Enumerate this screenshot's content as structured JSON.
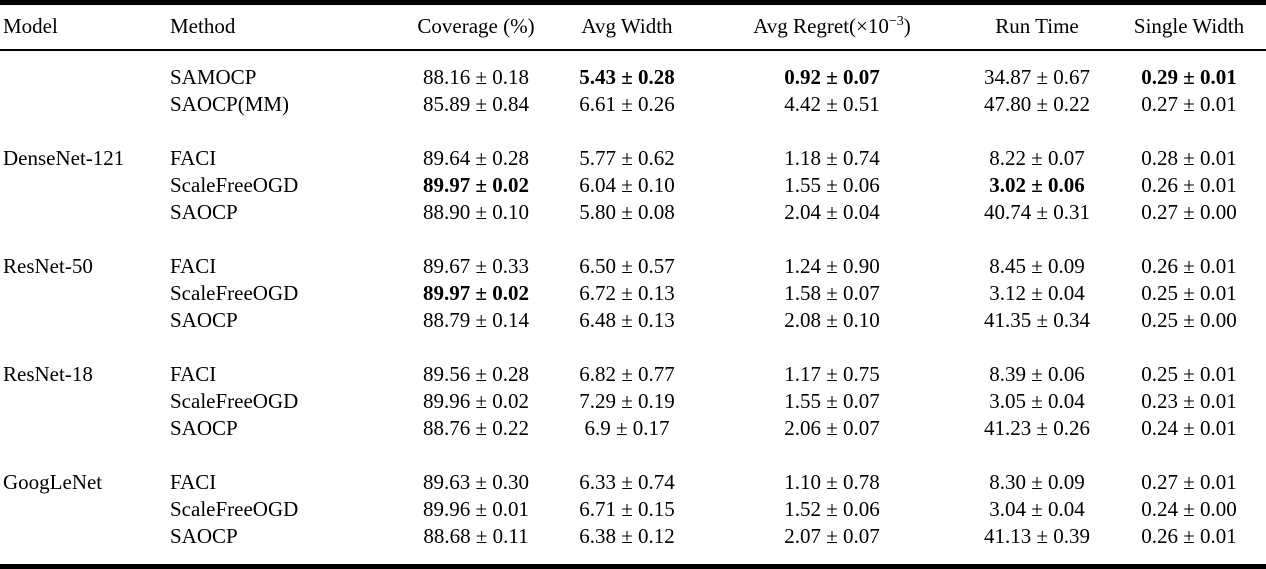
{
  "table": {
    "columns": [
      {
        "label": "Model"
      },
      {
        "label": "Method"
      },
      {
        "label": "Coverage (%)"
      },
      {
        "label": "Avg Width"
      },
      {
        "label": "Avg Regret(×10",
        "sup": "−3",
        "suffix": ")"
      },
      {
        "label": "Run Time"
      },
      {
        "label": "Single Width"
      }
    ],
    "groups": [
      {
        "model": "",
        "rows": [
          {
            "method": "SAMOCP",
            "cells": [
              {
                "v": "88.16 ± 0.18"
              },
              {
                "v": "5.43 ± 0.28",
                "b": true
              },
              {
                "v": "0.92 ± 0.07",
                "b": true
              },
              {
                "v": "34.87 ± 0.67"
              },
              {
                "v": "0.29 ± 0.01",
                "b": true
              }
            ]
          },
          {
            "method": "SAOCP(MM)",
            "cells": [
              {
                "v": "85.89 ± 0.84"
              },
              {
                "v": "6.61 ± 0.26"
              },
              {
                "v": "4.42 ± 0.51"
              },
              {
                "v": "47.80 ± 0.22"
              },
              {
                "v": "0.27 ± 0.01"
              }
            ]
          }
        ]
      },
      {
        "model": "DenseNet-121",
        "rows": [
          {
            "method": "FACI",
            "cells": [
              {
                "v": "89.64 ± 0.28"
              },
              {
                "v": "5.77 ± 0.62"
              },
              {
                "v": "1.18 ± 0.74"
              },
              {
                "v": "8.22 ± 0.07"
              },
              {
                "v": "0.28 ± 0.01"
              }
            ]
          },
          {
            "method": "ScaleFreeOGD",
            "cells": [
              {
                "v": "89.97 ± 0.02",
                "b": true
              },
              {
                "v": "6.04 ± 0.10"
              },
              {
                "v": "1.55 ± 0.06"
              },
              {
                "v": "3.02 ± 0.06",
                "b": true
              },
              {
                "v": "0.26 ± 0.01"
              }
            ]
          },
          {
            "method": "SAOCP",
            "cells": [
              {
                "v": "88.90 ± 0.10"
              },
              {
                "v": "5.80 ± 0.08"
              },
              {
                "v": "2.04 ± 0.04"
              },
              {
                "v": "40.74 ± 0.31"
              },
              {
                "v": "0.27 ± 0.00"
              }
            ]
          }
        ]
      },
      {
        "model": "ResNet-50",
        "rows": [
          {
            "method": "FACI",
            "cells": [
              {
                "v": "89.67 ± 0.33"
              },
              {
                "v": "6.50 ± 0.57"
              },
              {
                "v": "1.24 ± 0.90"
              },
              {
                "v": "8.45 ± 0.09"
              },
              {
                "v": "0.26 ± 0.01"
              }
            ]
          },
          {
            "method": "ScaleFreeOGD",
            "cells": [
              {
                "v": "89.97 ± 0.02",
                "b": true
              },
              {
                "v": "6.72 ± 0.13"
              },
              {
                "v": "1.58 ± 0.07"
              },
              {
                "v": "3.12 ± 0.04"
              },
              {
                "v": "0.25 ± 0.01"
              }
            ]
          },
          {
            "method": "SAOCP",
            "cells": [
              {
                "v": "88.79 ± 0.14"
              },
              {
                "v": "6.48 ± 0.13"
              },
              {
                "v": "2.08 ± 0.10"
              },
              {
                "v": "41.35 ± 0.34"
              },
              {
                "v": "0.25 ± 0.00"
              }
            ]
          }
        ]
      },
      {
        "model": "ResNet-18",
        "rows": [
          {
            "method": "FACI",
            "cells": [
              {
                "v": "89.56 ± 0.28"
              },
              {
                "v": "6.82 ± 0.77"
              },
              {
                "v": "1.17 ± 0.75"
              },
              {
                "v": "8.39 ± 0.06"
              },
              {
                "v": "0.25 ± 0.01"
              }
            ]
          },
          {
            "method": "ScaleFreeOGD",
            "cells": [
              {
                "v": "89.96 ± 0.02"
              },
              {
                "v": "7.29 ± 0.19"
              },
              {
                "v": "1.55 ± 0.07"
              },
              {
                "v": "3.05 ± 0.04"
              },
              {
                "v": "0.23 ± 0.01"
              }
            ]
          },
          {
            "method": "SAOCP",
            "cells": [
              {
                "v": "88.76 ± 0.22"
              },
              {
                "v": "6.9 ± 0.17"
              },
              {
                "v": "2.06 ± 0.07"
              },
              {
                "v": "41.23 ± 0.26"
              },
              {
                "v": "0.24 ± 0.01"
              }
            ]
          }
        ]
      },
      {
        "model": "GoogLeNet",
        "rows": [
          {
            "method": "FACI",
            "cells": [
              {
                "v": "89.63 ± 0.30"
              },
              {
                "v": "6.33 ± 0.74"
              },
              {
                "v": "1.10 ± 0.78"
              },
              {
                "v": "8.30 ± 0.09"
              },
              {
                "v": "0.27 ± 0.01"
              }
            ]
          },
          {
            "method": "ScaleFreeOGD",
            "cells": [
              {
                "v": "89.96 ± 0.01"
              },
              {
                "v": "6.71 ± 0.15"
              },
              {
                "v": "1.52 ± 0.06"
              },
              {
                "v": "3.04 ± 0.04"
              },
              {
                "v": "0.24 ± 0.00"
              }
            ]
          },
          {
            "method": "SAOCP",
            "cells": [
              {
                "v": "88.68 ± 0.11"
              },
              {
                "v": "6.38 ± 0.12"
              },
              {
                "v": "2.07 ± 0.07"
              },
              {
                "v": "41.13 ± 0.39"
              },
              {
                "v": "0.26 ± 0.01"
              }
            ]
          }
        ]
      }
    ]
  }
}
